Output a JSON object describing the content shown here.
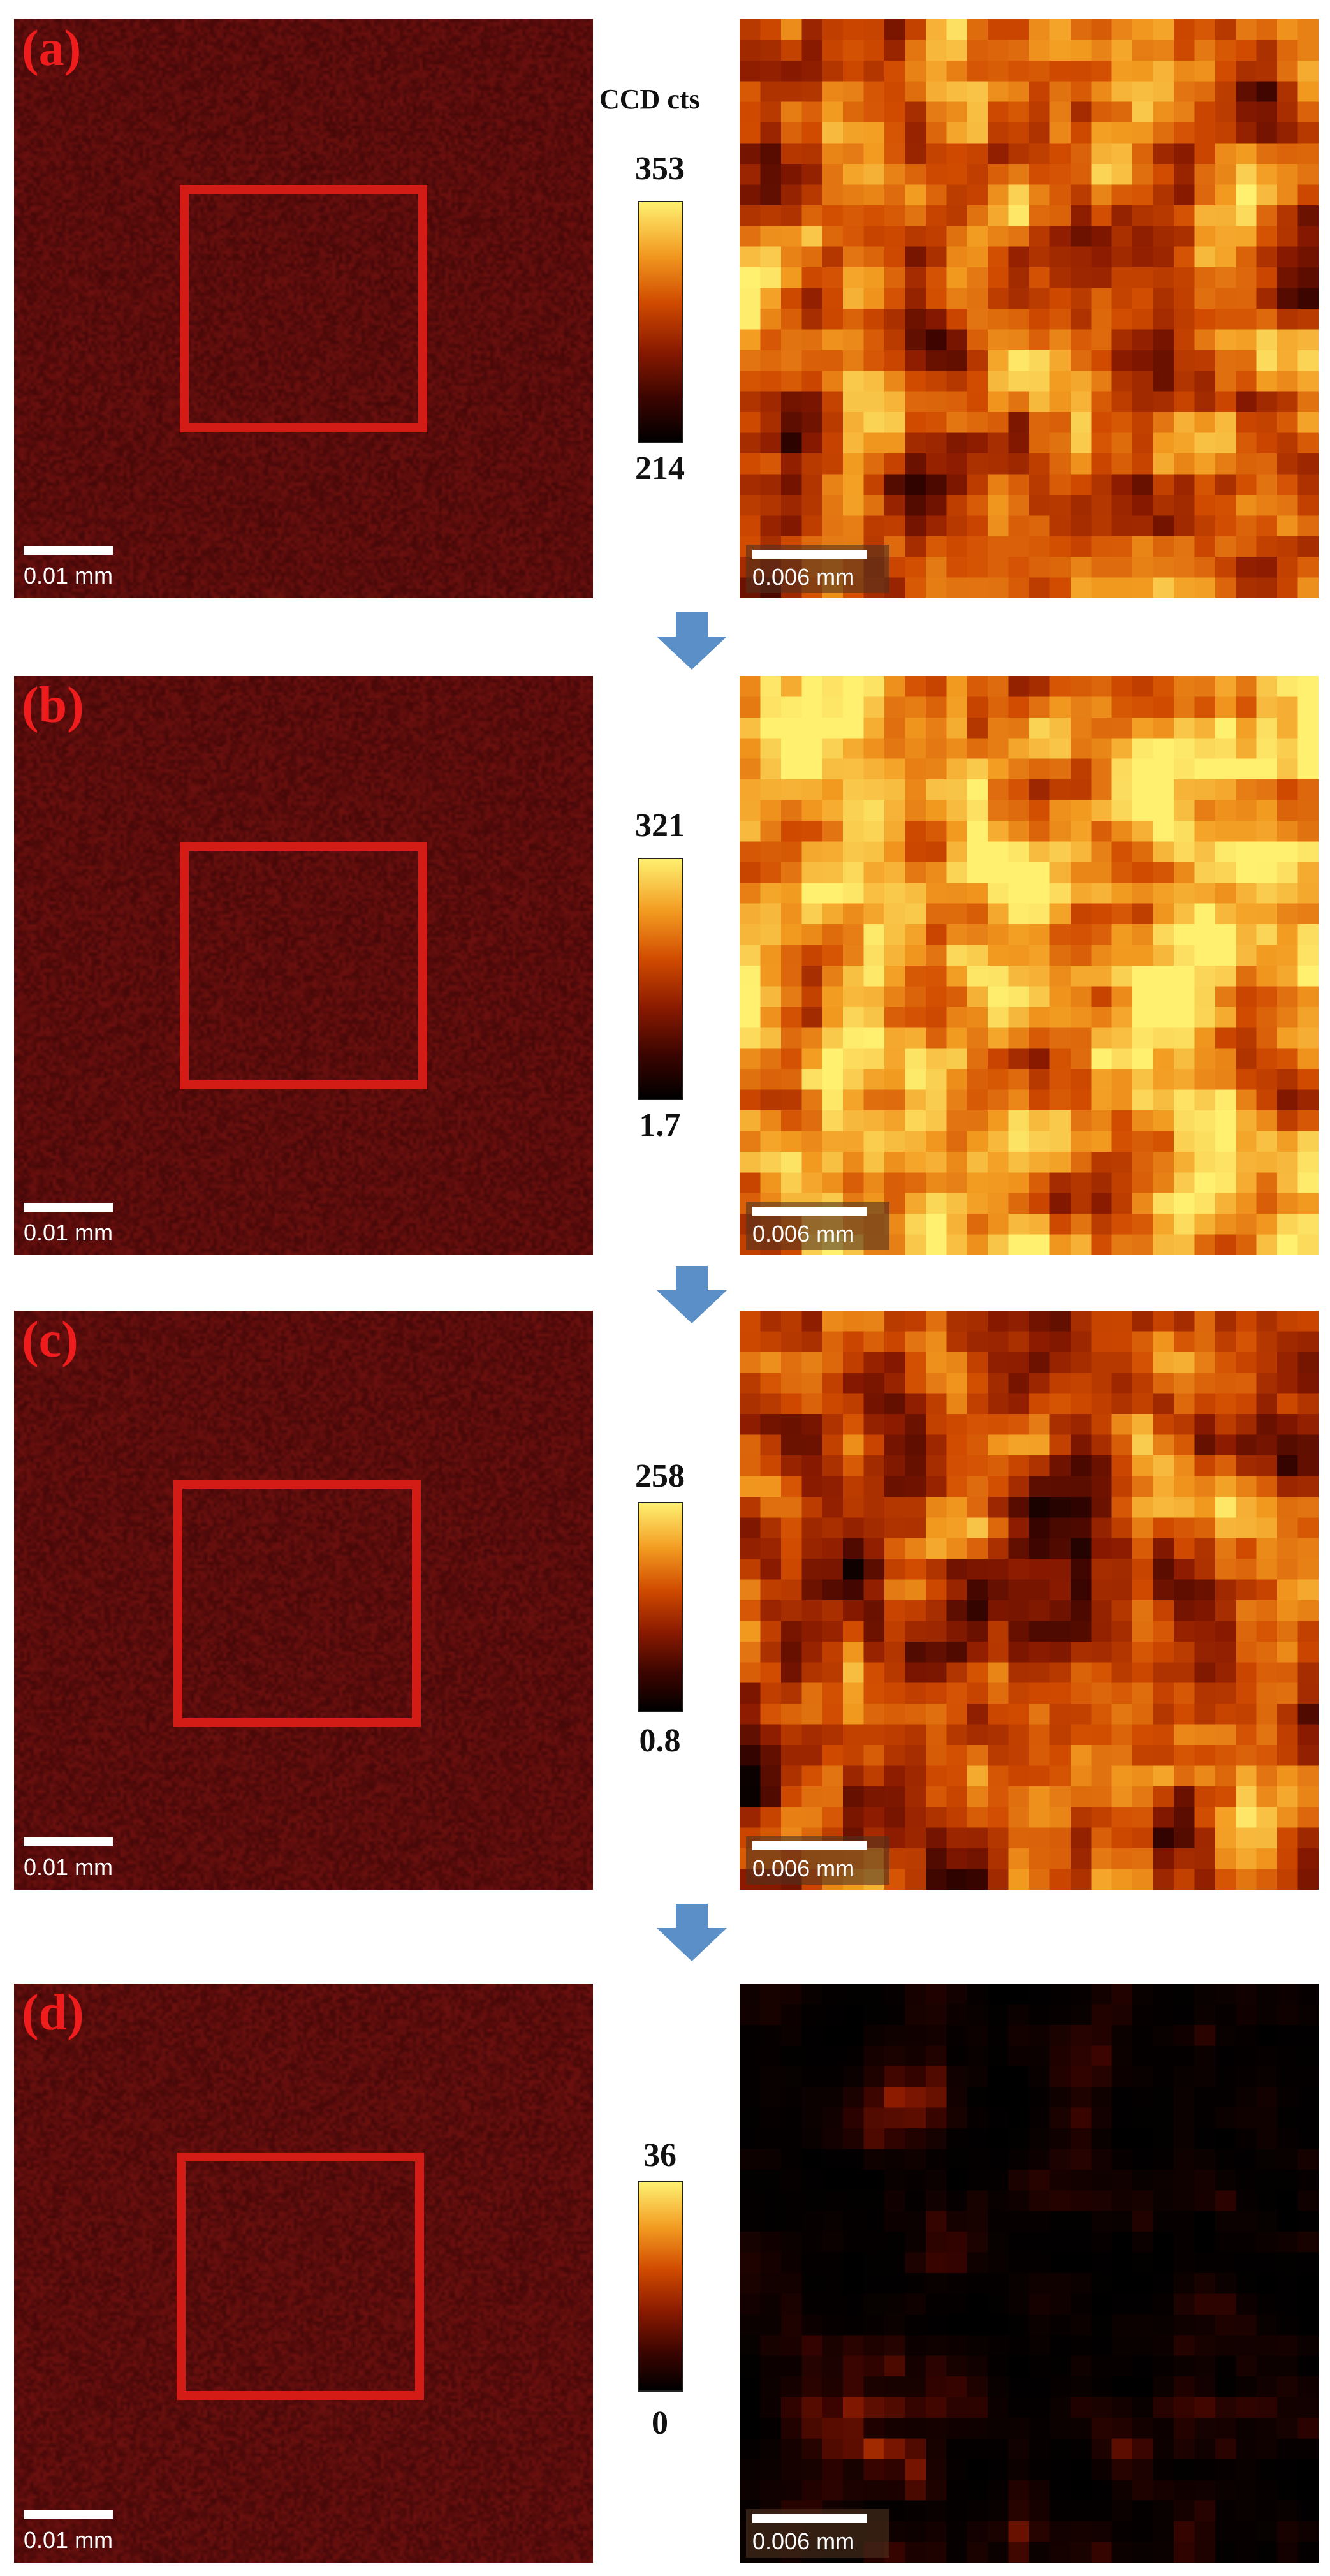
{
  "colorbar_unit": "CCD cts",
  "colors": {
    "panel_label": "#ee1c1c",
    "roi_box": "#d41c16",
    "arrow": "#5b8fc7"
  },
  "panels": [
    {
      "label": "(a)",
      "cb_max": "353",
      "cb_min": "214",
      "left_scale": "0.01 mm",
      "right_scale": "0.006 mm",
      "brightness": 0.62
    },
    {
      "label": "(b)",
      "cb_max": "321",
      "cb_min": "1.7",
      "left_scale": "0.01 mm",
      "right_scale": "0.006 mm",
      "brightness": 0.78
    },
    {
      "label": "(c)",
      "cb_max": "258",
      "cb_min": "0.8",
      "left_scale": "0.01 mm",
      "right_scale": "0.006 mm",
      "brightness": 0.55
    },
    {
      "label": "(d)",
      "cb_max": "36",
      "cb_min": "0",
      "left_scale": "0.01 mm",
      "right_scale": "0.006 mm",
      "brightness": 0.08
    }
  ]
}
